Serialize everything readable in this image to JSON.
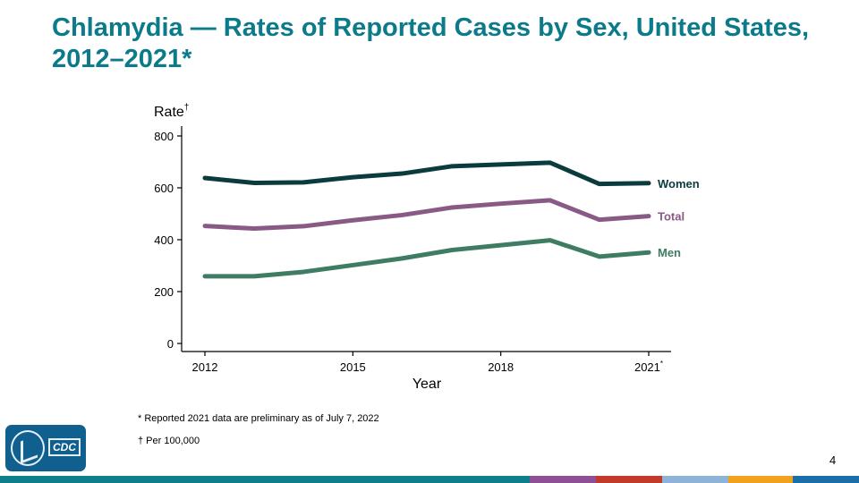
{
  "slide": {
    "title": "Chlamydia — Rates of Reported Cases by Sex, United States, 2012–2021*",
    "footnotes": [
      "* Reported 2021 data are preliminary as of July 7, 2022",
      "† Per 100,000"
    ],
    "page_number": "4",
    "logo_text": "CDC",
    "colors": {
      "title": "#0b7a8a",
      "logo_bg": "#0f5f8f"
    },
    "bottom_bar_colors": [
      "#0e7e8b",
      "#8e4f94",
      "#c23a2a",
      "#8db3d7",
      "#f0a21d",
      "#1b6ea8"
    ]
  },
  "chart_data": {
    "type": "line",
    "xlabel": "Year",
    "ylabel": "Rate†",
    "x": [
      2012,
      2013,
      2014,
      2015,
      2016,
      2017,
      2018,
      2019,
      2020,
      2021
    ],
    "x_tick_labels": [
      "2012",
      "2015",
      "2018",
      "2021*"
    ],
    "y_ticks": [
      0,
      200,
      400,
      600,
      800
    ],
    "ylim": [
      0,
      800
    ],
    "xlim": [
      2012,
      2021
    ],
    "grid": false,
    "legend": "direct labels at right end of lines",
    "series": [
      {
        "name": "Women",
        "color": "#0b3b3c",
        "values": [
          638,
          619,
          621,
          641,
          655,
          683,
          690,
          697,
          615,
          618
        ]
      },
      {
        "name": "Total",
        "color": "#8a5a86",
        "values": [
          453,
          443,
          452,
          475,
          495,
          524,
          539,
          552,
          477,
          491
        ]
      },
      {
        "name": "Men",
        "color": "#3e7c63",
        "values": [
          259,
          259,
          276,
          302,
          328,
          360,
          379,
          398,
          335,
          351
        ]
      }
    ]
  }
}
